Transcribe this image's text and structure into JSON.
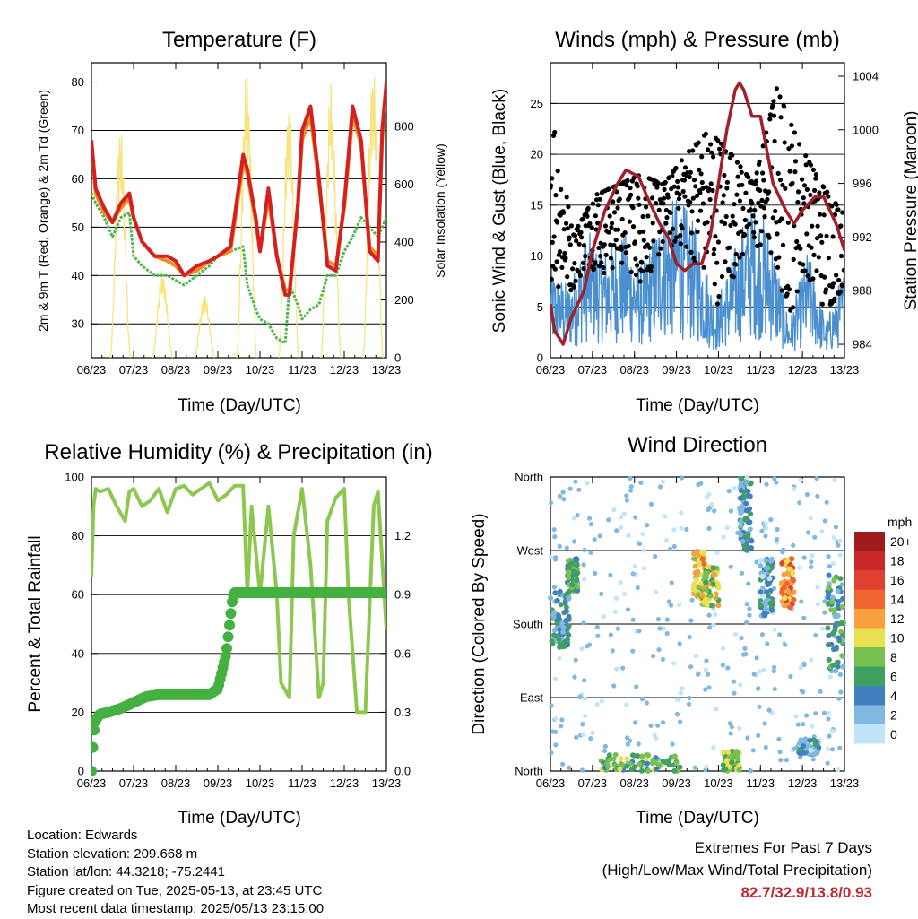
{
  "time_axis": {
    "label": "Time (Day/UTC)",
    "ticks": [
      "06/23",
      "07/23",
      "08/23",
      "09/23",
      "10/23",
      "11/23",
      "12/23",
      "13/23"
    ]
  },
  "chart_data": [
    {
      "id": "temperature",
      "type": "line",
      "title": "Temperature (F)",
      "ylabel": "2m & 9m T (Red, Orange) & 2m Td (Green)",
      "y2label": "Solar Insolation (Yellow)",
      "xlabel": "Time (Day/UTC)",
      "ylim": [
        23,
        84
      ],
      "y2lim": [
        0,
        1020
      ],
      "yticks": [
        30,
        40,
        50,
        60,
        70,
        80
      ],
      "y2ticks": [
        0,
        200,
        400,
        600,
        800
      ],
      "x": [
        0.0,
        0.1,
        0.3,
        0.5,
        0.7,
        0.9,
        1.0,
        1.2,
        1.5,
        1.8,
        2.0,
        2.2,
        2.5,
        2.8,
        3.0,
        3.3,
        3.6,
        3.7,
        3.9,
        4.0,
        4.2,
        4.4,
        4.6,
        4.7,
        4.9,
        5.0,
        5.2,
        5.4,
        5.6,
        5.8,
        6.0,
        6.2,
        6.4,
        6.6,
        6.8,
        6.9,
        7.0
      ],
      "series": [
        {
          "name": "2m T",
          "color": "#d62020",
          "values": [
            68,
            58,
            54,
            51,
            55,
            57,
            52,
            47,
            44,
            44,
            43,
            40,
            42,
            43,
            44,
            46,
            65,
            62,
            52,
            45,
            58,
            44,
            36,
            36,
            55,
            70,
            75,
            60,
            42,
            41,
            55,
            75,
            68,
            45,
            43,
            70,
            80
          ]
        },
        {
          "name": "9m T",
          "color": "#f28c28",
          "values": [
            67,
            57,
            53,
            51,
            54,
            56,
            52,
            47,
            44,
            43,
            42,
            40,
            41,
            43,
            44,
            45,
            63,
            61,
            51,
            45,
            56,
            44,
            37,
            37,
            54,
            68,
            73,
            59,
            43,
            42,
            54,
            73,
            67,
            46,
            44,
            68,
            79
          ]
        },
        {
          "name": "2m Td",
          "color": "#4cb848",
          "values": [
            57,
            55,
            52,
            48,
            52,
            53,
            44,
            42,
            40,
            40,
            39,
            38,
            40,
            42,
            44,
            45,
            46,
            38,
            33,
            31,
            30,
            27,
            26,
            38,
            34,
            31,
            33,
            34,
            40,
            40,
            45,
            48,
            52,
            50,
            48,
            50,
            52
          ]
        },
        {
          "name": "Solar Insolation",
          "color": "#f7e37a",
          "axis": "right",
          "daily_peak_wm2": [
            800,
            300,
            220,
            1000,
            880,
            950,
            1020
          ]
        }
      ]
    },
    {
      "id": "winds",
      "type": "scatter",
      "title": "Winds (mph) & Pressure (mb)",
      "ylabel": "Sonic Wind & Gust (Blue, Black)",
      "y2label": "Station Pressure (Maroon)",
      "xlabel": "Time (Day/UTC)",
      "ylim": [
        0,
        29
      ],
      "y2lim": [
        983,
        1005
      ],
      "yticks": [
        0,
        5,
        10,
        15,
        20,
        25
      ],
      "y2ticks": [
        984,
        988,
        992,
        996,
        1000,
        1004
      ],
      "wind_daily_mean": [
        5,
        4,
        7,
        6,
        7,
        5,
        8,
        9,
        7,
        3,
        6,
        9,
        7,
        2,
        6,
        2,
        5
      ],
      "gust_daily_max": [
        25.5,
        12,
        16,
        17,
        18,
        17,
        20,
        22.3,
        20,
        17,
        26.5,
        21,
        17,
        14
      ],
      "series": [
        {
          "name": "Pressure",
          "color": "#a0202a",
          "x": [
            0.0,
            0.1,
            0.3,
            0.5,
            0.8,
            1.0,
            1.3,
            1.6,
            1.8,
            2.1,
            2.3,
            2.6,
            2.8,
            3.0,
            3.2,
            3.4,
            3.6,
            3.8,
            4.0,
            4.2,
            4.4,
            4.5,
            4.6,
            4.8,
            5.0,
            5.3,
            5.6,
            5.8,
            6.0,
            6.3,
            6.5,
            6.8,
            7.0
          ],
          "values": [
            987,
            985,
            984,
            986,
            988,
            991,
            994,
            996,
            997,
            996.5,
            995,
            993,
            992,
            990,
            989.5,
            990,
            990,
            992,
            996,
            1000,
            1003,
            1003.5,
            1003,
            1001,
            1001,
            996,
            994,
            993,
            994,
            995,
            995,
            993,
            991
          ]
        }
      ]
    },
    {
      "id": "rh_precip",
      "type": "line",
      "title": "Relative Humidity (%) & Precipitation (in)",
      "ylabel": "Percent & Total Rainfall",
      "xlabel": "Time (Day/UTC)",
      "ylim": [
        0,
        100
      ],
      "y2lim": [
        0,
        1.5
      ],
      "yticks": [
        0,
        20,
        40,
        60,
        80,
        100
      ],
      "y2ticks": [
        0.0,
        0.3,
        0.6,
        0.9,
        1.2
      ],
      "series": [
        {
          "name": "Relative Humidity",
          "color": "#8cc850",
          "x": [
            0.0,
            0.05,
            0.1,
            0.2,
            0.4,
            0.6,
            0.8,
            0.9,
            1.0,
            1.2,
            1.4,
            1.6,
            1.8,
            2.0,
            2.2,
            2.4,
            2.6,
            2.8,
            3.0,
            3.2,
            3.4,
            3.6,
            3.7,
            3.8,
            4.0,
            4.2,
            4.4,
            4.5,
            4.7,
            4.8,
            5.0,
            5.2,
            5.4,
            5.5,
            5.6,
            5.8,
            6.0,
            6.1,
            6.3,
            6.5,
            6.7,
            6.8,
            7.0
          ],
          "values": [
            66,
            90,
            96,
            95,
            96,
            90,
            85,
            95,
            96,
            90,
            92,
            96,
            88,
            96,
            97,
            94,
            96,
            98,
            92,
            94,
            97,
            97,
            60,
            90,
            60,
            90,
            60,
            30,
            25,
            80,
            96,
            70,
            25,
            30,
            85,
            93,
            96,
            60,
            20,
            20,
            90,
            95,
            48
          ]
        },
        {
          "name": "Total Precipitation",
          "color": "#44b040",
          "axis": "right",
          "x": [
            0.0,
            0.05,
            0.1,
            0.2,
            0.4,
            0.7,
            1.0,
            1.3,
            1.6,
            2.0,
            2.4,
            2.8,
            3.0,
            3.2,
            3.35,
            3.4,
            4.0,
            5.0,
            6.0,
            7.0
          ],
          "values": [
            0.0,
            0.19,
            0.26,
            0.29,
            0.3,
            0.32,
            0.35,
            0.38,
            0.39,
            0.39,
            0.39,
            0.39,
            0.42,
            0.6,
            0.88,
            0.91,
            0.91,
            0.91,
            0.91,
            0.91
          ]
        }
      ]
    },
    {
      "id": "wind_direction",
      "type": "scatter",
      "title": "Wind Direction",
      "ylabel": "Direction (Colored By Speed)",
      "xlabel": "Time (Day/UTC)",
      "yticks": [
        "North",
        "East",
        "South",
        "West",
        "North"
      ],
      "ylim_deg": [
        0,
        360
      ],
      "colorbar": {
        "unit": "mph",
        "labels": [
          "20+",
          "18",
          "16",
          "14",
          "12",
          "10",
          "8",
          "6",
          "4",
          "2",
          "0"
        ],
        "colors": [
          "#a01c1c",
          "#c82828",
          "#e04030",
          "#f06430",
          "#f8a040",
          "#e8e050",
          "#78c050",
          "#40a060",
          "#4080c0",
          "#80b8e0",
          "#c0e4f8"
        ]
      },
      "clusters": [
        {
          "day_start": 0.0,
          "day_end": 0.45,
          "dir_from": 150,
          "dir_to": 220,
          "speed": 4
        },
        {
          "day_start": 0.4,
          "day_end": 0.65,
          "dir_from": 220,
          "dir_to": 260,
          "speed": 6
        },
        {
          "day_start": 1.2,
          "day_end": 3.1,
          "dir_from": 0,
          "dir_to": 20,
          "speed": 7
        },
        {
          "day_start": 3.4,
          "day_end": 3.7,
          "dir_from": 210,
          "dir_to": 270,
          "speed": 11
        },
        {
          "day_start": 3.6,
          "day_end": 4.0,
          "dir_from": 200,
          "dir_to": 250,
          "speed": 9
        },
        {
          "day_start": 4.1,
          "day_end": 4.5,
          "dir_from": 0,
          "dir_to": 25,
          "speed": 8
        },
        {
          "day_start": 4.5,
          "day_end": 4.8,
          "dir_from": 270,
          "dir_to": 360,
          "speed": 4
        },
        {
          "day_start": 5.0,
          "day_end": 5.3,
          "dir_from": 190,
          "dir_to": 260,
          "speed": 3
        },
        {
          "day_start": 5.5,
          "day_end": 5.8,
          "dir_from": 200,
          "dir_to": 260,
          "speed": 13
        },
        {
          "day_start": 5.9,
          "day_end": 6.4,
          "dir_from": 20,
          "dir_to": 40,
          "speed": 3
        },
        {
          "day_start": 6.6,
          "day_end": 7.0,
          "dir_from": 120,
          "dir_to": 240,
          "speed": 5
        }
      ]
    }
  ],
  "info": {
    "location": "Location: Edwards",
    "elevation": "Station elevation: 209.668 m",
    "latlon": "Station lat/lon: 44.3218; -75.2441",
    "created": "Figure created on Tue, 2025-05-13, at 23:45 UTC",
    "recent": "Most recent data timestamp: 2025/05/13 23:15:00"
  },
  "extremes": {
    "title": "Extremes For Past 7 Days",
    "subtitle": "(High/Low/Max Wind/Total Precipitation)",
    "values": "82.7/32.9/13.8/0.93"
  }
}
